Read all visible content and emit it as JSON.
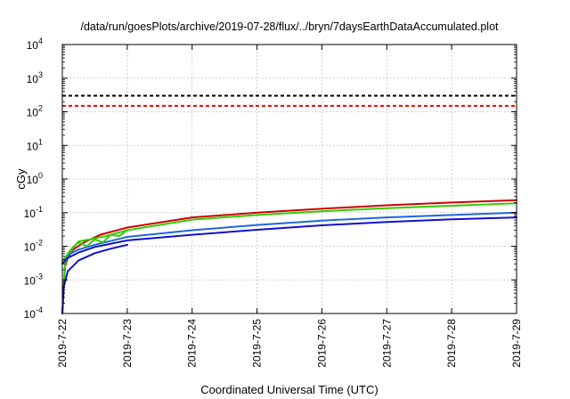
{
  "chart_data": {
    "type": "line",
    "title": "/data/run/goesPlots/archive/2019-07-28/flux/../bryn/7daysEarthDataAccumulated.plot",
    "xlabel": "Coordinated Universal Time (UTC)",
    "ylabel": "cGy",
    "y_scale": "log",
    "ylim": [
      0.0001,
      10000
    ],
    "xlim": [
      "2019-07-22",
      "2019-07-29"
    ],
    "grid": true,
    "x_ticks": [
      "2019-7-22",
      "2019-7-23",
      "2019-7-24",
      "2019-7-25",
      "2019-7-26",
      "2019-7-27",
      "2019-7-28",
      "2019-7-29"
    ],
    "y_ticks": [
      {
        "value": 0.0001,
        "base": "10",
        "exp": "-4"
      },
      {
        "value": 0.001,
        "base": "10",
        "exp": "-3"
      },
      {
        "value": 0.01,
        "base": "10",
        "exp": "-2"
      },
      {
        "value": 0.1,
        "base": "10",
        "exp": "-1"
      },
      {
        "value": 1,
        "base": "10",
        "exp": "0"
      },
      {
        "value": 10,
        "base": "10",
        "exp": "1"
      },
      {
        "value": 100,
        "base": "10",
        "exp": "2"
      },
      {
        "value": 1000,
        "base": "10",
        "exp": "3"
      },
      {
        "value": 10000,
        "base": "10",
        "exp": "4"
      }
    ],
    "thresholds": [
      {
        "value": 300,
        "color": "#000000",
        "style": "dashed"
      },
      {
        "value": 150,
        "color": "#ee0000",
        "style": "dashed"
      }
    ],
    "series": [
      {
        "color": "#cc0000",
        "x": [
          "2019-07-22T00:00",
          "2019-07-22T01:00",
          "2019-07-22T02:00",
          "2019-07-22T04:00",
          "2019-07-22T08:00",
          "2019-07-22T14:00",
          "2019-07-23T00:00",
          "2019-07-24T00:00",
          "2019-07-25T00:00",
          "2019-07-26T00:00",
          "2019-07-27T00:00",
          "2019-07-28T00:00",
          "2019-07-29T00:00"
        ],
        "values": [
          0.0001,
          0.0025,
          0.0045,
          0.008,
          0.013,
          0.022,
          0.036,
          0.072,
          0.1,
          0.13,
          0.165,
          0.2,
          0.235
        ]
      },
      {
        "color": "#33cc00",
        "x": [
          "2019-07-22T00:00",
          "2019-07-22T01:00",
          "2019-07-22T02:00",
          "2019-07-22T04:00",
          "2019-07-22T06:00",
          "2019-07-22T10:00",
          "2019-07-22T16:00",
          "2019-07-23T00:00",
          "2019-07-24T00:00",
          "2019-07-25T00:00",
          "2019-07-26T00:00",
          "2019-07-27T00:00",
          "2019-07-28T00:00",
          "2019-07-29T00:00"
        ],
        "values": [
          0.0001,
          0.003,
          0.005,
          0.009,
          0.014,
          0.016,
          0.02,
          0.03,
          0.062,
          0.085,
          0.11,
          0.135,
          0.16,
          0.19
        ]
      },
      {
        "color": "#2266dd",
        "x": [
          "2019-07-22T00:00",
          "2019-07-22T02:00",
          "2019-07-22T06:00",
          "2019-07-22T12:00",
          "2019-07-23T00:00",
          "2019-07-24T00:00",
          "2019-07-25T00:00",
          "2019-07-26T00:00",
          "2019-07-27T00:00",
          "2019-07-28T00:00",
          "2019-07-29T00:00"
        ],
        "values": [
          0.0035,
          0.0055,
          0.008,
          0.011,
          0.019,
          0.03,
          0.043,
          0.058,
          0.072,
          0.085,
          0.1
        ]
      },
      {
        "color": "#1111cc",
        "x": [
          "2019-07-22T00:00",
          "2019-07-22T02:00",
          "2019-07-22T06:00",
          "2019-07-22T12:00",
          "2019-07-23T00:00",
          "2019-07-24T00:00",
          "2019-07-25T00:00",
          "2019-07-26T00:00",
          "2019-07-27T00:00",
          "2019-07-28T00:00",
          "2019-07-29T00:00"
        ],
        "values": [
          0.003,
          0.0045,
          0.0065,
          0.0095,
          0.015,
          0.022,
          0.031,
          0.042,
          0.053,
          0.063,
          0.072
        ]
      },
      {
        "color": "#1111cc",
        "x": [
          "2019-07-22T00:00",
          "2019-07-22T00:30",
          "2019-07-22T02:00",
          "2019-07-22T06:00",
          "2019-07-22T12:00",
          "2019-07-22T18:00",
          "2019-07-23T00:00"
        ],
        "values": [
          0.0001,
          0.0006,
          0.0018,
          0.0038,
          0.0062,
          0.0085,
          0.011
        ]
      },
      {
        "color": "#33cc00",
        "x": [
          "2019-07-22T00:00",
          "2019-07-22T02:00",
          "2019-07-22T04:00",
          "2019-07-22T06:00",
          "2019-07-22T09:00",
          "2019-07-22T12:00",
          "2019-07-22T15:00",
          "2019-07-22T18:00",
          "2019-07-22T21:00",
          "2019-07-23T00:00"
        ],
        "values": [
          0.0035,
          0.006,
          0.0095,
          0.013,
          0.01,
          0.016,
          0.013,
          0.022,
          0.02,
          0.03
        ]
      }
    ]
  }
}
